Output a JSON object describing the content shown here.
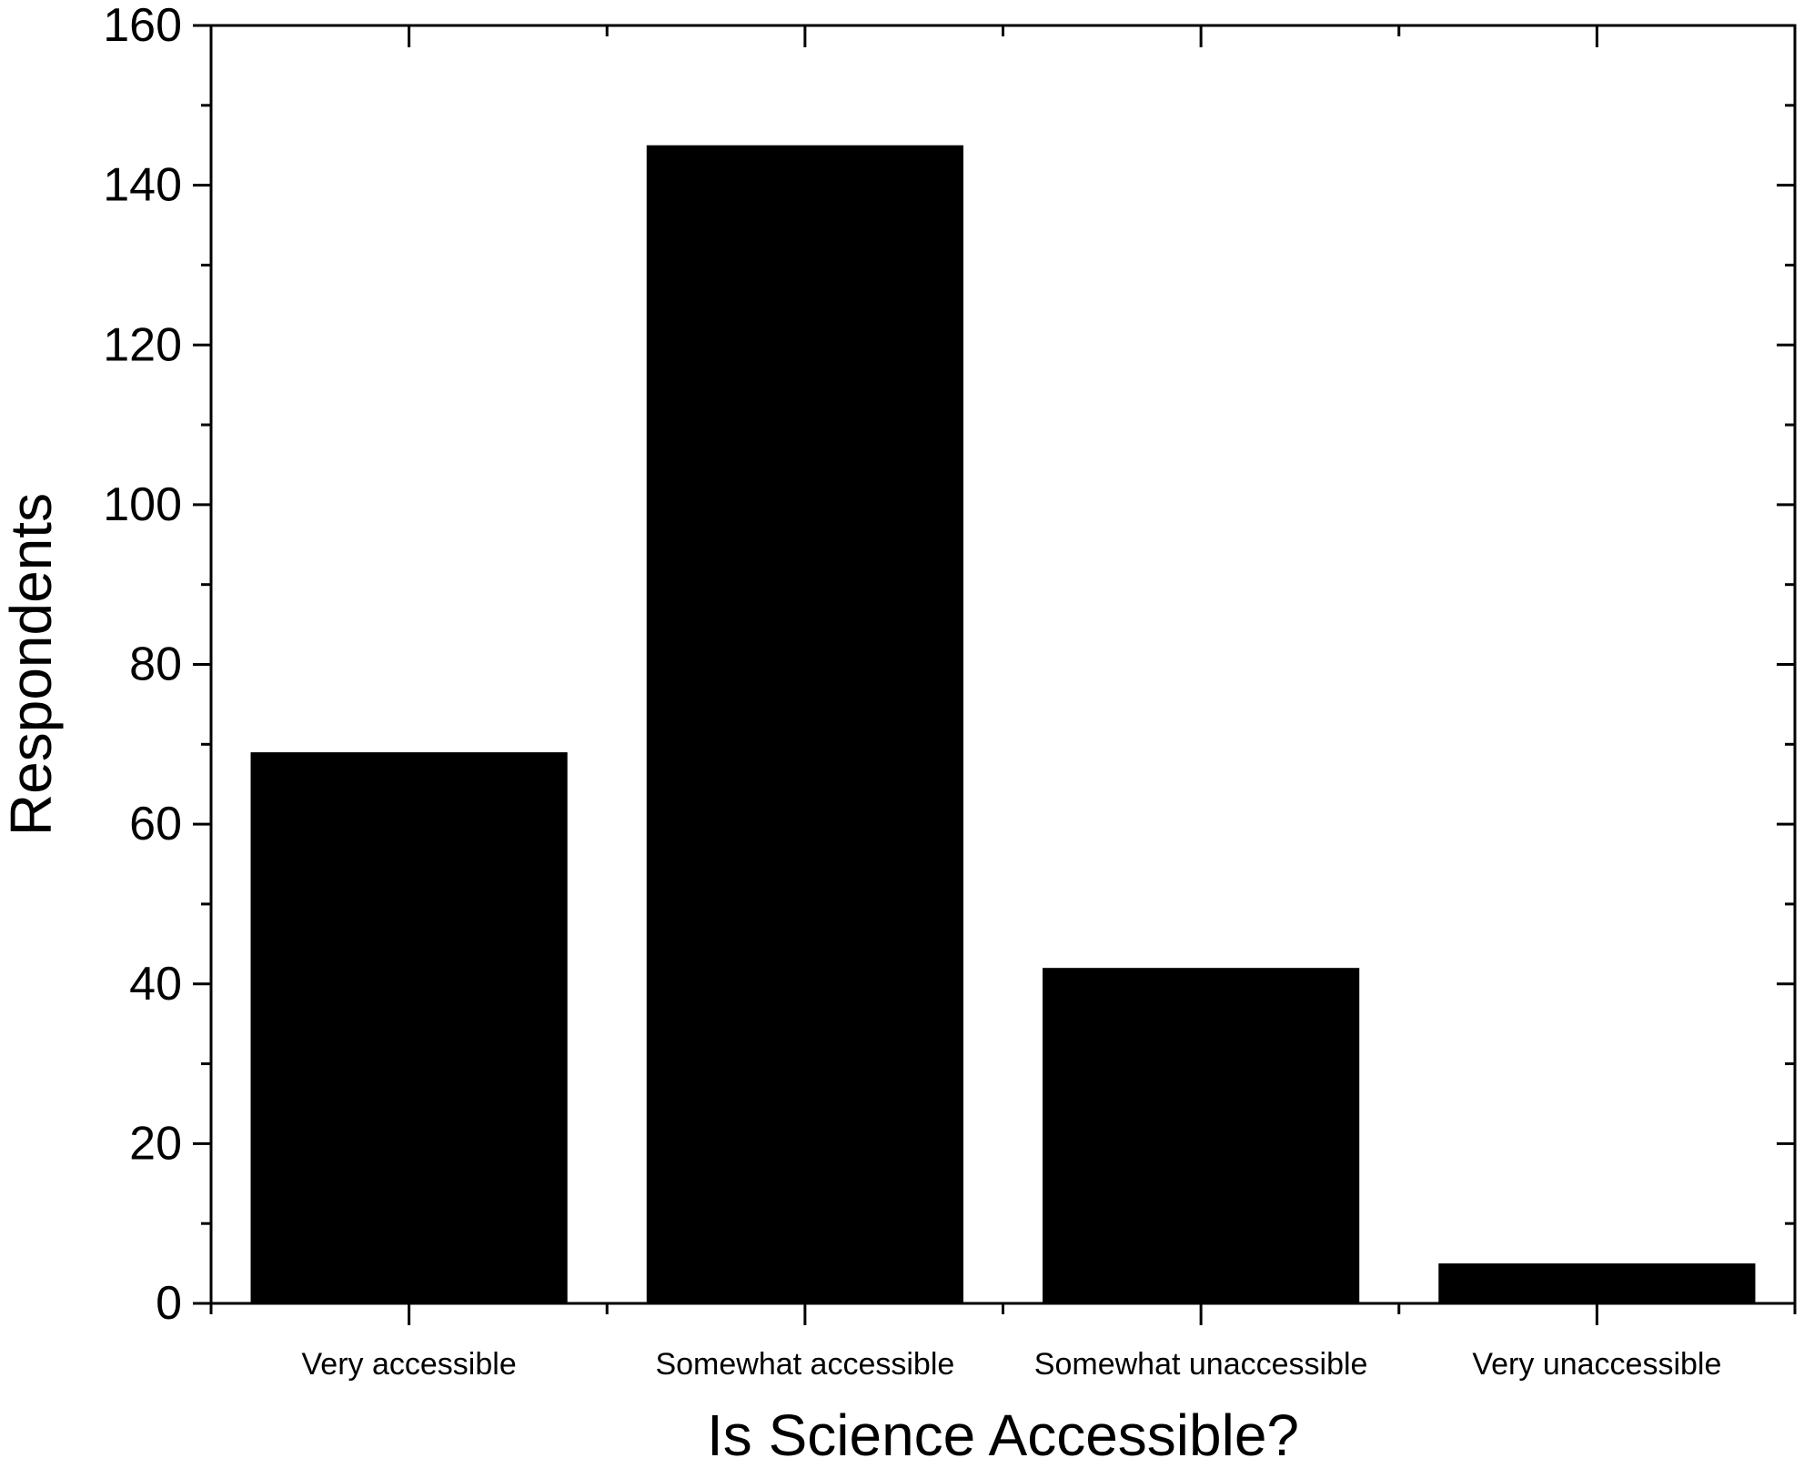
{
  "chart_data": {
    "type": "bar",
    "title": "",
    "xlabel": "Is Science Accessible?",
    "ylabel": "Respondents",
    "categories": [
      "Very accessible",
      "Somewhat accessible",
      "Somewhat unaccessible",
      "Very unaccessible"
    ],
    "values": [
      69,
      145,
      42,
      5
    ],
    "ylim": [
      0,
      160
    ],
    "yticks": [
      0,
      20,
      40,
      60,
      80,
      100,
      120,
      140,
      160
    ],
    "grid": false,
    "legend": "none",
    "bar_color": "#000000"
  }
}
